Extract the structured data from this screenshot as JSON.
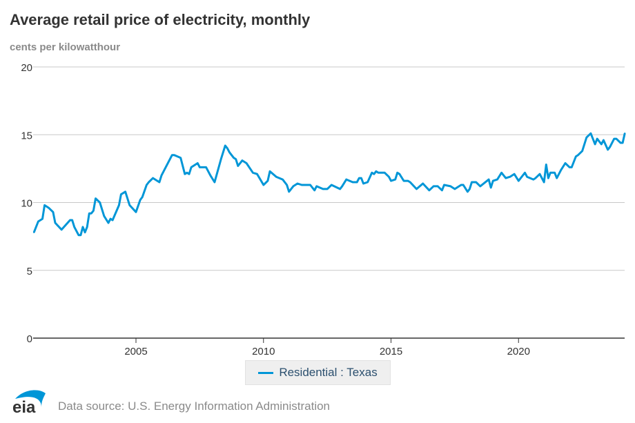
{
  "chart_data": {
    "type": "line",
    "title": "Average retail price of electricity, monthly",
    "subtitle": "cents per kilowatthour",
    "xlabel": "",
    "ylabel": "",
    "ylim": [
      0,
      20
    ],
    "xlim": [
      "2001-01",
      "2024-03"
    ],
    "yticks": [
      "0",
      "5",
      "10",
      "15",
      "20"
    ],
    "xticks": [
      "2005",
      "2010",
      "2015",
      "2020"
    ],
    "grid": "horizontal",
    "legend_position": "bottom",
    "series": [
      {
        "name": "Residential : Texas",
        "color": "#0096d7",
        "points": [
          [
            "2001-01",
            7.8
          ],
          [
            "2001-03",
            8.6
          ],
          [
            "2001-05",
            8.8
          ],
          [
            "2001-06",
            9.8
          ],
          [
            "2001-08",
            9.6
          ],
          [
            "2001-10",
            9.3
          ],
          [
            "2001-11",
            8.5
          ],
          [
            "2002-02",
            8.0
          ],
          [
            "2002-06",
            8.7
          ],
          [
            "2002-07",
            8.7
          ],
          [
            "2002-08",
            8.2
          ],
          [
            "2002-10",
            7.6
          ],
          [
            "2002-11",
            7.6
          ],
          [
            "2002-12",
            8.2
          ],
          [
            "2003-01",
            7.8
          ],
          [
            "2003-02",
            8.2
          ],
          [
            "2003-03",
            9.2
          ],
          [
            "2003-04",
            9.2
          ],
          [
            "2003-05",
            9.4
          ],
          [
            "2003-06",
            10.3
          ],
          [
            "2003-08",
            10.0
          ],
          [
            "2003-10",
            9.0
          ],
          [
            "2003-12",
            8.5
          ],
          [
            "2004-01",
            8.8
          ],
          [
            "2004-02",
            8.7
          ],
          [
            "2004-05",
            9.8
          ],
          [
            "2004-06",
            10.6
          ],
          [
            "2004-08",
            10.8
          ],
          [
            "2004-10",
            9.8
          ],
          [
            "2005-01",
            9.3
          ],
          [
            "2005-03",
            10.2
          ],
          [
            "2005-04",
            10.4
          ],
          [
            "2005-06",
            11.3
          ],
          [
            "2005-07",
            11.5
          ],
          [
            "2005-09",
            11.8
          ],
          [
            "2005-12",
            11.5
          ],
          [
            "2006-01",
            12.0
          ],
          [
            "2006-06",
            13.5
          ],
          [
            "2006-07",
            13.5
          ],
          [
            "2006-10",
            13.3
          ],
          [
            "2006-12",
            12.1
          ],
          [
            "2007-01",
            12.2
          ],
          [
            "2007-02",
            12.1
          ],
          [
            "2007-03",
            12.6
          ],
          [
            "2007-06",
            12.9
          ],
          [
            "2007-07",
            12.6
          ],
          [
            "2007-09",
            12.6
          ],
          [
            "2007-10",
            12.6
          ],
          [
            "2007-12",
            12.0
          ],
          [
            "2008-02",
            11.5
          ],
          [
            "2008-05",
            13.2
          ],
          [
            "2008-07",
            14.2
          ],
          [
            "2008-08",
            14.0
          ],
          [
            "2008-09",
            13.7
          ],
          [
            "2008-11",
            13.3
          ],
          [
            "2008-12",
            13.2
          ],
          [
            "2009-01",
            12.7
          ],
          [
            "2009-03",
            13.1
          ],
          [
            "2009-05",
            12.9
          ],
          [
            "2009-08",
            12.2
          ],
          [
            "2009-10",
            12.1
          ],
          [
            "2010-01",
            11.3
          ],
          [
            "2010-03",
            11.6
          ],
          [
            "2010-04",
            12.3
          ],
          [
            "2010-07",
            11.9
          ],
          [
            "2010-10",
            11.7
          ],
          [
            "2010-12",
            11.3
          ],
          [
            "2011-01",
            10.8
          ],
          [
            "2011-03",
            11.2
          ],
          [
            "2011-05",
            11.4
          ],
          [
            "2011-07",
            11.3
          ],
          [
            "2011-11",
            11.3
          ],
          [
            "2012-01",
            10.9
          ],
          [
            "2012-02",
            11.2
          ],
          [
            "2012-05",
            11.0
          ],
          [
            "2012-07",
            11.0
          ],
          [
            "2012-09",
            11.3
          ],
          [
            "2013-01",
            11.0
          ],
          [
            "2013-02",
            11.2
          ],
          [
            "2013-04",
            11.7
          ],
          [
            "2013-07",
            11.5
          ],
          [
            "2013-09",
            11.5
          ],
          [
            "2013-10",
            11.8
          ],
          [
            "2013-11",
            11.8
          ],
          [
            "2013-12",
            11.4
          ],
          [
            "2014-02",
            11.5
          ],
          [
            "2014-04",
            12.2
          ],
          [
            "2014-05",
            12.1
          ],
          [
            "2014-06",
            12.3
          ],
          [
            "2014-07",
            12.2
          ],
          [
            "2014-10",
            12.2
          ],
          [
            "2014-12",
            11.9
          ],
          [
            "2015-01",
            11.6
          ],
          [
            "2015-03",
            11.7
          ],
          [
            "2015-04",
            12.2
          ],
          [
            "2015-05",
            12.1
          ],
          [
            "2015-07",
            11.6
          ],
          [
            "2015-09",
            11.6
          ],
          [
            "2015-10",
            11.5
          ],
          [
            "2016-01",
            11.0
          ],
          [
            "2016-04",
            11.4
          ],
          [
            "2016-07",
            10.9
          ],
          [
            "2016-09",
            11.2
          ],
          [
            "2016-11",
            11.2
          ],
          [
            "2017-01",
            10.9
          ],
          [
            "2017-02",
            11.3
          ],
          [
            "2017-05",
            11.2
          ],
          [
            "2017-07",
            11.0
          ],
          [
            "2017-10",
            11.3
          ],
          [
            "2017-11",
            11.3
          ],
          [
            "2018-01",
            10.8
          ],
          [
            "2018-02",
            11.0
          ],
          [
            "2018-03",
            11.5
          ],
          [
            "2018-05",
            11.5
          ],
          [
            "2018-07",
            11.2
          ],
          [
            "2018-11",
            11.7
          ],
          [
            "2018-12",
            11.1
          ],
          [
            "2019-01",
            11.6
          ],
          [
            "2019-03",
            11.7
          ],
          [
            "2019-05",
            12.2
          ],
          [
            "2019-07",
            11.8
          ],
          [
            "2019-09",
            11.9
          ],
          [
            "2019-11",
            12.1
          ],
          [
            "2020-01",
            11.6
          ],
          [
            "2020-04",
            12.2
          ],
          [
            "2020-05",
            11.9
          ],
          [
            "2020-08",
            11.7
          ],
          [
            "2020-09",
            11.8
          ],
          [
            "2020-11",
            12.1
          ],
          [
            "2021-01",
            11.5
          ],
          [
            "2021-02",
            12.8
          ],
          [
            "2021-03",
            11.8
          ],
          [
            "2021-04",
            12.2
          ],
          [
            "2021-06",
            12.2
          ],
          [
            "2021-07",
            11.8
          ],
          [
            "2021-09",
            12.4
          ],
          [
            "2021-11",
            12.9
          ],
          [
            "2022-01",
            12.6
          ],
          [
            "2022-02",
            12.6
          ],
          [
            "2022-04",
            13.4
          ],
          [
            "2022-05",
            13.5
          ],
          [
            "2022-07",
            13.8
          ],
          [
            "2022-09",
            14.8
          ],
          [
            "2022-11",
            15.1
          ],
          [
            "2023-01",
            14.3
          ],
          [
            "2023-02",
            14.7
          ],
          [
            "2023-04",
            14.3
          ],
          [
            "2023-05",
            14.6
          ],
          [
            "2023-07",
            13.9
          ],
          [
            "2023-08",
            14.1
          ],
          [
            "2023-10",
            14.7
          ],
          [
            "2023-11",
            14.7
          ],
          [
            "2024-01",
            14.4
          ],
          [
            "2024-02",
            14.4
          ],
          [
            "2024-03",
            15.1
          ]
        ]
      }
    ]
  },
  "footer": {
    "source": "Data source: U.S. Energy Information Administration",
    "logo_text": "eia"
  }
}
